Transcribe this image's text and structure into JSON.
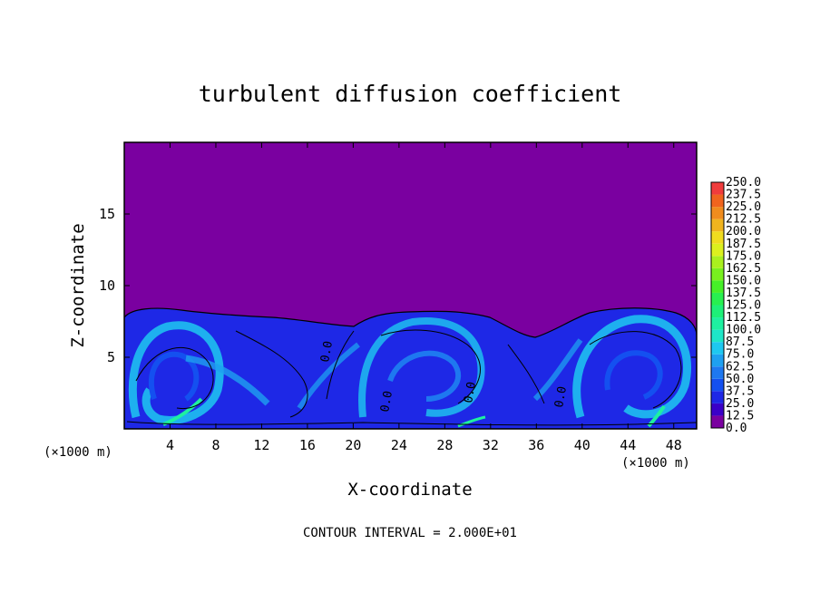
{
  "chart_data": {
    "type": "heatmap",
    "title": "turbulent diffusion coefficient",
    "xlabel": "X-coordinate",
    "ylabel": "Z-coordinate",
    "x_unit": "(×1000 m)",
    "xlim": [
      0,
      50
    ],
    "ylim": [
      0,
      20
    ],
    "x_ticks": [
      "4",
      "8",
      "12",
      "16",
      "20",
      "24",
      "28",
      "32",
      "36",
      "40",
      "44",
      "48"
    ],
    "y_ticks": [
      "5",
      "10",
      "15"
    ],
    "colorbar": {
      "levels": [
        "0.0",
        "12.5",
        "25.0",
        "37.5",
        "50.0",
        "62.5",
        "75.0",
        "87.5",
        "100.0",
        "112.5",
        "125.0",
        "137.5",
        "150.0",
        "162.5",
        "175.0",
        "187.5",
        "200.0",
        "212.5",
        "225.0",
        "237.5",
        "250.0"
      ],
      "colors": [
        "#7a00a0",
        "#3a00c8",
        "#1e28e6",
        "#1450f0",
        "#1e78f0",
        "#1ea0f0",
        "#1ec8f0",
        "#1ee6c8",
        "#1ef0a0",
        "#1ef078",
        "#28f050",
        "#46f028",
        "#78f01e",
        "#aaf01e",
        "#dcf01e",
        "#f0dc1e",
        "#f0b41e",
        "#f08c1e",
        "#f0641e",
        "#f03c3c",
        "#f07878"
      ]
    },
    "contour_labels": [
      "0.0",
      "0.0",
      "0.0",
      "0.0"
    ],
    "footer": "CONTOUR INTERVAL = 2.000E+01"
  }
}
